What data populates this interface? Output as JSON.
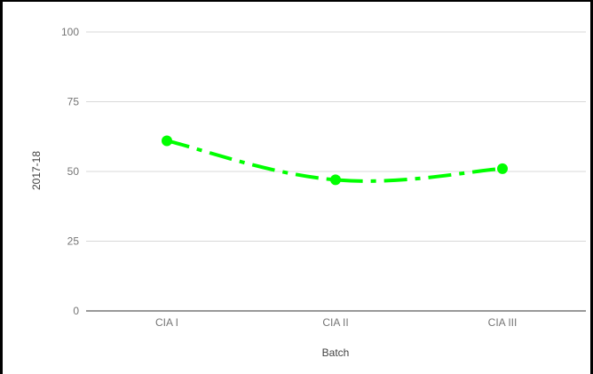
{
  "chart_data": {
    "type": "line",
    "categories": [
      "CIA I",
      "CIA II",
      "CIA III"
    ],
    "series": [
      {
        "values": [
          61,
          47,
          51
        ],
        "color": "#00ff00",
        "line_style": "dash-dot",
        "smooth": true,
        "markers": "circle"
      }
    ],
    "xlabel": "Batch",
    "ylabel": "2017-18",
    "ylim": [
      0,
      100
    ],
    "yticks": [
      0,
      25,
      50,
      75,
      100
    ],
    "grid": true,
    "legend": "none"
  }
}
